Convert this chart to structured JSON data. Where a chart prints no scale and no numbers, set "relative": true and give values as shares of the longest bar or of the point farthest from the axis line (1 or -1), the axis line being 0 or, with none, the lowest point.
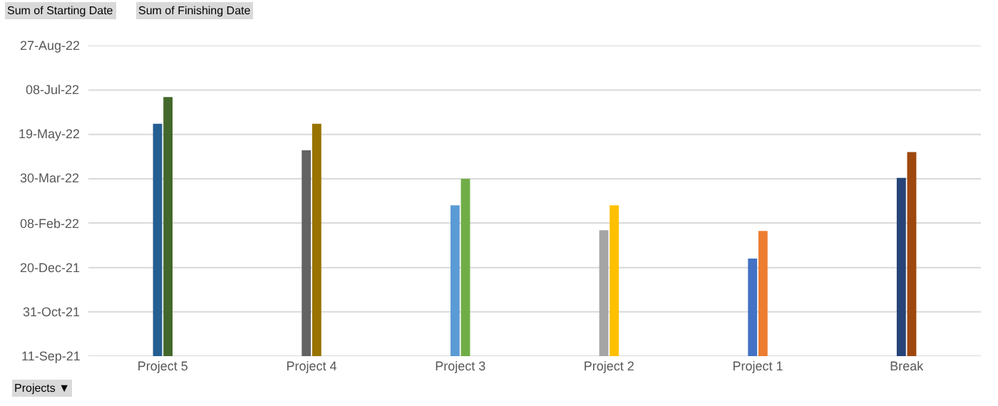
{
  "chart_data": {
    "type": "bar",
    "relative": true,
    "categories": [
      "Project 5",
      "Project 4",
      "Project 3",
      "Project 2",
      "Project 1",
      "Break"
    ],
    "series": [
      {
        "colors": [
          "#255e91",
          "#636363",
          "#5b9bd5",
          "#a5a5a5",
          "#4472c4",
          "#264478"
        ],
        "values": [
          0.897,
          0.795,
          0.582,
          0.486,
          0.377,
          0.688
        ]
      },
      {
        "colors": [
          "#43682b",
          "#997300",
          "#70ad47",
          "#ffc000",
          "#ed7d31",
          "#9e480e"
        ],
        "values": [
          1,
          0.897,
          0.685,
          0.582,
          0.483,
          0.788
        ]
      }
    ],
    "ref_lines": [
      {
        "axis": "y",
        "value": 0,
        "label": "11-Sep-21",
        "color": "#d9d9d9"
      },
      {
        "axis": "y",
        "value": 0.171,
        "label": "31-Oct-21",
        "color": "#d9d9d9"
      },
      {
        "axis": "y",
        "value": 0.342,
        "label": "20-Dec-21",
        "color": "#d9d9d9"
      },
      {
        "axis": "y",
        "value": 0.514,
        "label": "08-Feb-22",
        "color": "#d9d9d9"
      },
      {
        "axis": "y",
        "value": 0.685,
        "label": "30-Mar-22",
        "color": "#d9d9d9"
      },
      {
        "axis": "y",
        "value": 0.856,
        "label": "19-May-22",
        "color": "#d9d9d9"
      },
      {
        "axis": "y",
        "value": 1.027,
        "label": "08-Jul-22",
        "color": "#d9d9d9"
      },
      {
        "axis": "y",
        "value": 1.199,
        "label": "27-Aug-22",
        "color": "#d9d9d9"
      }
    ],
    "annotations": [
      "Sum of Starting Date",
      "Sum of Finishing Date",
      "Projects ▼"
    ]
  }
}
